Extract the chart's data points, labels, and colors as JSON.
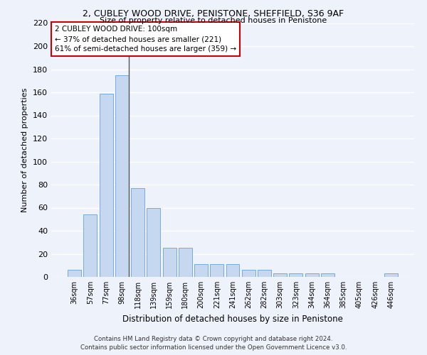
{
  "title1": "2, CUBLEY WOOD DRIVE, PENISTONE, SHEFFIELD, S36 9AF",
  "title2": "Size of property relative to detached houses in Penistone",
  "xlabel": "Distribution of detached houses by size in Penistone",
  "ylabel": "Number of detached properties",
  "categories": [
    "36sqm",
    "57sqm",
    "77sqm",
    "98sqm",
    "118sqm",
    "139sqm",
    "159sqm",
    "180sqm",
    "200sqm",
    "221sqm",
    "241sqm",
    "262sqm",
    "282sqm",
    "303sqm",
    "323sqm",
    "344sqm",
    "364sqm",
    "385sqm",
    "405sqm",
    "426sqm",
    "446sqm"
  ],
  "values": [
    6,
    54,
    159,
    175,
    77,
    60,
    25,
    25,
    11,
    11,
    11,
    6,
    6,
    3,
    3,
    3,
    3,
    0,
    0,
    0,
    3
  ],
  "bar_color": "#c5d8f0",
  "bar_edge_color": "#7aaadb",
  "highlight_bar_index": 3,
  "highlight_line_color": "#555555",
  "ylim": [
    0,
    220
  ],
  "yticks": [
    0,
    20,
    40,
    60,
    80,
    100,
    120,
    140,
    160,
    180,
    200,
    220
  ],
  "annotation_text": "2 CUBLEY WOOD DRIVE: 100sqm\n← 37% of detached houses are smaller (221)\n61% of semi-detached houses are larger (359) →",
  "annotation_box_color": "#ffffff",
  "annotation_box_edge": "#cc0000",
  "footer1": "Contains HM Land Registry data © Crown copyright and database right 2024.",
  "footer2": "Contains public sector information licensed under the Open Government Licence v3.0.",
  "bg_color": "#eef2fa",
  "grid_color": "#ffffff"
}
